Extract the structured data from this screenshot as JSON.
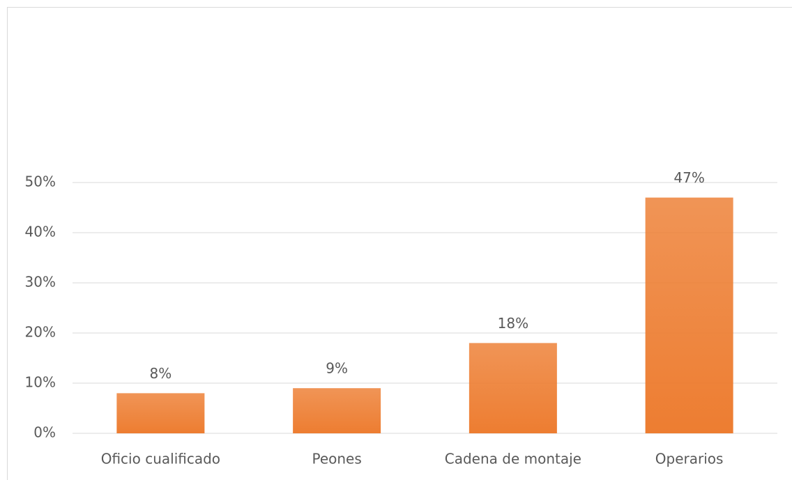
{
  "chart_data": {
    "type": "bar",
    "categories": [
      "Oficio cualificado",
      "Peones",
      "Cadena de montaje",
      "Operarios"
    ],
    "values": [
      8,
      9,
      18,
      47
    ],
    "value_labels": [
      "8%",
      "9%",
      "18%",
      "47%"
    ],
    "color": "#ed7d31",
    "ylim": [
      0,
      50
    ],
    "yticks": [
      {
        "value": 0,
        "label": "0%"
      },
      {
        "value": 10,
        "label": "10%"
      },
      {
        "value": 20,
        "label": "20%"
      },
      {
        "value": 30,
        "label": "30%"
      },
      {
        "value": 40,
        "label": "40%"
      },
      {
        "value": 50,
        "label": "50%"
      }
    ],
    "grid": true
  }
}
